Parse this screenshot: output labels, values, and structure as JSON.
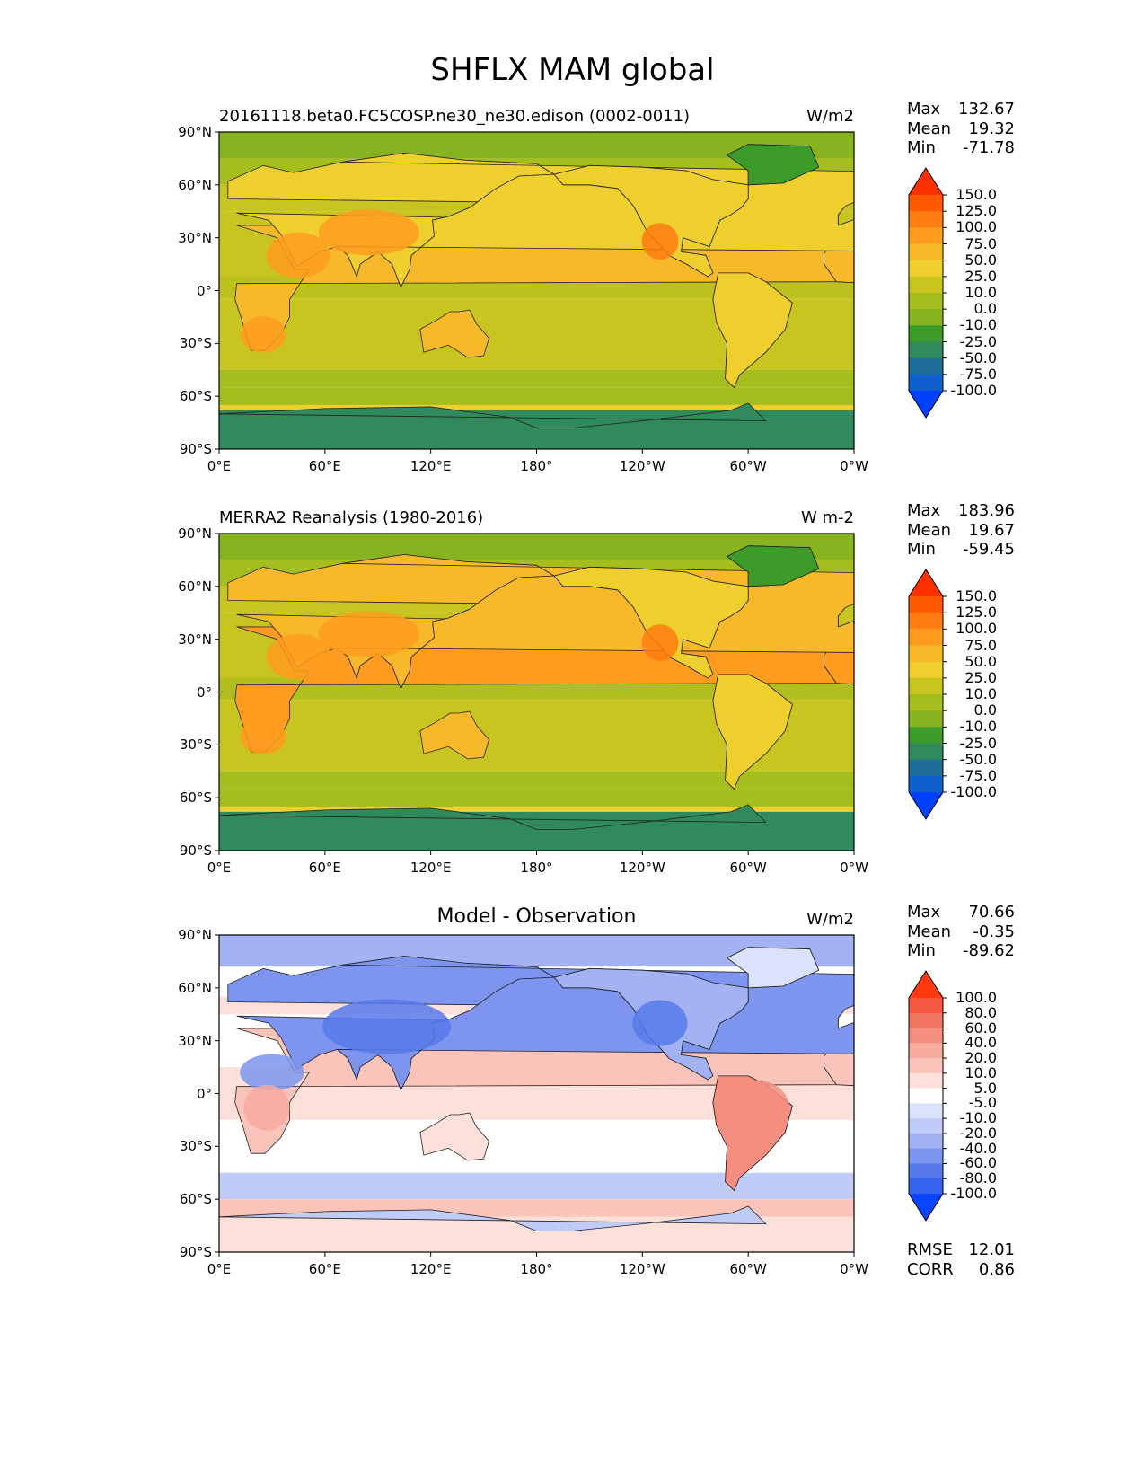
{
  "figure_title": "SHFLX MAM global",
  "chart_data": [
    {
      "type": "heatmap",
      "title": "20161118.beta0.FC5COSP.ne30_ne30.edison (0002-0011)",
      "units": "W/m2",
      "x_ticks": [
        "0°E",
        "60°E",
        "120°E",
        "180°",
        "120°W",
        "60°W",
        "0°W"
      ],
      "y_ticks": [
        "90°N",
        "60°N",
        "30°N",
        "0°",
        "30°S",
        "60°S",
        "90°S"
      ],
      "xlim": [
        0,
        360
      ],
      "ylim": [
        -90,
        90
      ],
      "stats": {
        "max_label": "Max",
        "max": "132.67",
        "mean_label": "Mean",
        "mean": "19.32",
        "min_label": "Min",
        "min": "-71.78"
      },
      "colorbar": {
        "levels": [
          "150.0",
          "125.0",
          "100.0",
          "75.0",
          "50.0",
          "25.0",
          "10.0",
          "0.0",
          "-10.0",
          "-25.0",
          "-50.0",
          "-75.0",
          "-100.0"
        ],
        "colors": [
          "#ff3000",
          "#ff5a00",
          "#ff7d10",
          "#ff9c20",
          "#f7b92a",
          "#efcf2e",
          "#c8c420",
          "#a6bd1e",
          "#86b31f",
          "#3c9b29",
          "#318a5c",
          "#1f6e9a",
          "#0f5fce",
          "#0040ff"
        ]
      }
    },
    {
      "type": "heatmap",
      "title": "MERRA2 Reanalysis (1980-2016)",
      "units": "W m-2",
      "x_ticks": [
        "0°E",
        "60°E",
        "120°E",
        "180°",
        "120°W",
        "60°W",
        "0°W"
      ],
      "y_ticks": [
        "90°N",
        "60°N",
        "30°N",
        "0°",
        "30°S",
        "60°S",
        "90°S"
      ],
      "xlim": [
        0,
        360
      ],
      "ylim": [
        -90,
        90
      ],
      "stats": {
        "max_label": "Max",
        "max": "183.96",
        "mean_label": "Mean",
        "mean": "19.67",
        "min_label": "Min",
        "min": "-59.45"
      },
      "colorbar": {
        "levels": [
          "150.0",
          "125.0",
          "100.0",
          "75.0",
          "50.0",
          "25.0",
          "10.0",
          "0.0",
          "-10.0",
          "-25.0",
          "-50.0",
          "-75.0",
          "-100.0"
        ],
        "colors": [
          "#ff3000",
          "#ff5a00",
          "#ff7d10",
          "#ff9c20",
          "#f7b92a",
          "#efcf2e",
          "#c8c420",
          "#a6bd1e",
          "#86b31f",
          "#3c9b29",
          "#318a5c",
          "#1f6e9a",
          "#0f5fce",
          "#0040ff"
        ]
      }
    },
    {
      "type": "heatmap",
      "title": "Model - Observation",
      "units": "W/m2",
      "x_ticks": [
        "0°E",
        "60°E",
        "120°E",
        "180°",
        "120°W",
        "60°W",
        "0°W"
      ],
      "y_ticks": [
        "90°N",
        "60°N",
        "30°N",
        "0°",
        "30°S",
        "60°S",
        "90°S"
      ],
      "xlim": [
        0,
        360
      ],
      "ylim": [
        -90,
        90
      ],
      "stats": {
        "max_label": "Max",
        "max": "70.66",
        "mean_label": "Mean",
        "mean": "-0.35",
        "min_label": "Min",
        "min": "-89.62"
      },
      "metrics": {
        "rmse_label": "RMSE",
        "rmse": "12.01",
        "corr_label": "CORR",
        "corr": "0.86"
      },
      "colorbar": {
        "levels": [
          "100.0",
          "80.0",
          "60.0",
          "40.0",
          "20.0",
          "10.0",
          "5.0",
          "-5.0",
          "-10.0",
          "-20.0",
          "-40.0",
          "-60.0",
          "-80.0",
          "-100.0"
        ],
        "colors": [
          "#ff3a10",
          "#f55840",
          "#f27462",
          "#f48e80",
          "#f7aa9e",
          "#fac4bb",
          "#fde0da",
          "#ffffff",
          "#dbe2fb",
          "#c0cbf7",
          "#a2b2f3",
          "#7d95ee",
          "#5779ea",
          "#3562ee",
          "#0a45ff"
        ]
      }
    }
  ]
}
